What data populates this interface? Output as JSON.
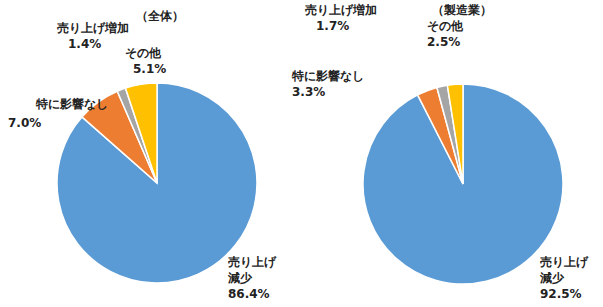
{
  "chart_data": [
    {
      "type": "pie",
      "title": "（全体）",
      "categories": [
        "売り上げ\n減少",
        "特に影響なし",
        "売り上げ増加",
        "その他"
      ],
      "values": [
        86.4,
        7.0,
        1.4,
        5.1
      ],
      "value_labels": [
        "86.4%",
        "7.0%",
        "1.4%",
        "5.1%"
      ],
      "colors": [
        "#5b9bd5",
        "#ed7d31",
        "#a5a5a5",
        "#ffc000"
      ],
      "data_labels": true
    },
    {
      "type": "pie",
      "title": "（製造業）",
      "categories": [
        "売り上げ\n減少",
        "特に影響なし",
        "売り上げ増加",
        "その他"
      ],
      "values": [
        92.5,
        3.3,
        1.7,
        2.5
      ],
      "value_labels": [
        "92.5%",
        "3.3%",
        "1.7%",
        "2.5%"
      ],
      "colors": [
        "#5b9bd5",
        "#ed7d31",
        "#a5a5a5",
        "#ffc000"
      ],
      "data_labels": true
    }
  ]
}
